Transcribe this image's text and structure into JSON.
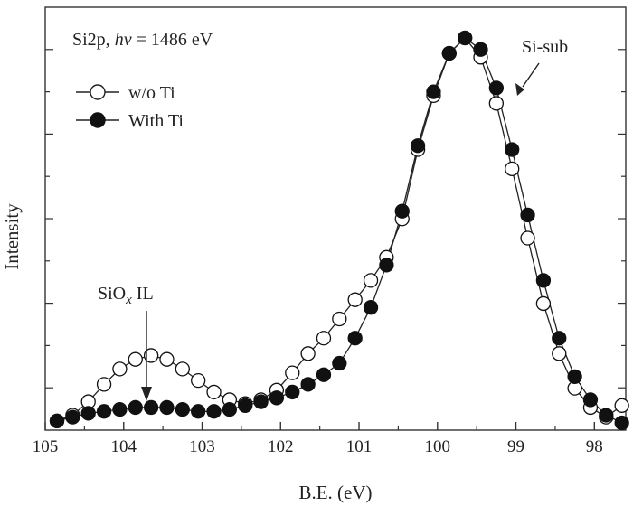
{
  "chart_data": {
    "type": "line",
    "annotation_title": {
      "prefix": "Si2p, ",
      "italic": "hv",
      "suffix": " = 1486 eV"
    },
    "xlabel": "B.E. (eV)",
    "ylabel": "Intensity",
    "xlim": [
      105,
      97.6
    ],
    "ylim": [
      0,
      1.0
    ],
    "x_reversed": true,
    "xticks": [
      105,
      104,
      103,
      102,
      101,
      100,
      99,
      98
    ],
    "xtick_labels": [
      "105",
      "104",
      "103",
      "102",
      "101",
      "100",
      "99",
      "98"
    ],
    "y_tick_labels_shown": false,
    "legend_position": "top-left",
    "annotations": [
      {
        "name": "siox-label",
        "text_main": "SiO",
        "text_sub": "x",
        "text_after": " IL",
        "arrow_to": [
          103.7,
          0.03
        ]
      },
      {
        "name": "si-sub-label",
        "text": "Si-sub",
        "arrow_to": [
          99.1,
          0.86
        ]
      }
    ],
    "series": [
      {
        "name": "w/o Ti",
        "marker": "open-circle",
        "x": [
          104.85,
          104.65,
          104.45,
          104.25,
          104.05,
          103.85,
          103.65,
          103.45,
          103.25,
          103.05,
          102.85,
          102.65,
          102.45,
          102.25,
          102.05,
          101.85,
          101.65,
          101.45,
          101.25,
          101.05,
          100.85,
          100.65,
          100.45,
          100.25,
          100.05,
          99.85,
          99.65,
          99.45,
          99.25,
          99.05,
          98.85,
          98.65,
          98.45,
          98.25,
          98.05,
          97.85,
          97.65
        ],
        "y": [
          0.005,
          0.02,
          0.055,
          0.1,
          0.14,
          0.165,
          0.175,
          0.165,
          0.14,
          0.11,
          0.08,
          0.06,
          0.05,
          0.06,
          0.085,
          0.13,
          0.18,
          0.22,
          0.27,
          0.32,
          0.37,
          0.43,
          0.53,
          0.71,
          0.85,
          0.96,
          1.0,
          0.95,
          0.83,
          0.66,
          0.48,
          0.31,
          0.18,
          0.09,
          0.04,
          0.015,
          0.045
        ]
      },
      {
        "name": "With Ti",
        "marker": "filled-circle",
        "x": [
          104.85,
          104.65,
          104.45,
          104.25,
          104.05,
          103.85,
          103.65,
          103.45,
          103.25,
          103.05,
          102.85,
          102.65,
          102.45,
          102.25,
          102.05,
          101.85,
          101.65,
          101.45,
          101.25,
          101.05,
          100.85,
          100.65,
          100.45,
          100.25,
          100.05,
          99.85,
          99.65,
          99.45,
          99.25,
          99.05,
          98.85,
          98.65,
          98.45,
          98.25,
          98.05,
          97.85,
          97.65
        ],
        "y": [
          0.005,
          0.015,
          0.025,
          0.03,
          0.035,
          0.04,
          0.04,
          0.04,
          0.035,
          0.03,
          0.03,
          0.035,
          0.045,
          0.055,
          0.065,
          0.08,
          0.1,
          0.125,
          0.155,
          0.22,
          0.3,
          0.41,
          0.55,
          0.72,
          0.86,
          0.96,
          1.0,
          0.97,
          0.87,
          0.71,
          0.54,
          0.37,
          0.22,
          0.12,
          0.06,
          0.02,
          0.0
        ]
      }
    ]
  }
}
